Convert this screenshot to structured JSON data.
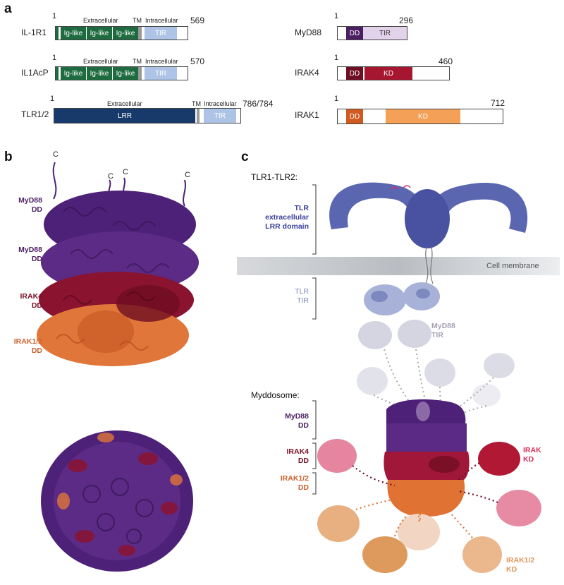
{
  "panels": {
    "a": "a",
    "b": "b",
    "c": "c"
  },
  "colors": {
    "ig_green": "#1d6b3e",
    "tm_gray": "#9a9a9a",
    "tir_blue": "#aec4e6",
    "lrr_navy": "#183a6b",
    "myd88_dd": "#4c1f63",
    "myd88_tir": "#e3d3ea",
    "irak4_dd": "#6e0e22",
    "irak4_kd": "#a6162f",
    "irak1_dd": "#d05a20",
    "irak1_kd": "#f4a057",
    "purple_protein": "#4e2178",
    "red_protein": "#8a1330",
    "orange_protein": "#e0763a",
    "blue_protein": "#5a67b0",
    "membrane": "#c8cbd0"
  },
  "panel_a": {
    "il1r1": {
      "name": "IL-1R1",
      "start": "1",
      "end": "569",
      "extracellular": "Extracellular",
      "tm": "TM",
      "intracellular": "Intracellular",
      "ig1": "Ig-like",
      "ig2": "Ig-like",
      "ig3": "Ig-like",
      "tir": "TIR"
    },
    "il1acp": {
      "name": "IL1AcP",
      "start": "1",
      "end": "570",
      "extracellular": "Extracellular",
      "tm": "TM",
      "intracellular": "Intracellular",
      "ig1": "Ig-like",
      "ig2": "Ig-like",
      "ig3": "Ig-like",
      "tir": "TIR"
    },
    "tlr12": {
      "name": "TLR1/2",
      "start": "1",
      "end": "786/784",
      "extracellular": "Extracellular",
      "tm": "TM",
      "intracellular": "Intracellular",
      "lrr": "LRR",
      "tir": "TIR"
    },
    "myd88": {
      "name": "MyD88",
      "start": "1",
      "end": "296",
      "dd": "DD",
      "tir": "TIR"
    },
    "irak4": {
      "name": "IRAK4",
      "start": "1",
      "end": "460",
      "dd": "DD",
      "kd": "KD"
    },
    "irak1": {
      "name": "IRAK1",
      "start": "1",
      "end": "712",
      "dd": "DD",
      "kd": "KD"
    }
  },
  "panel_b": {
    "c_terminus": "C",
    "myd88_dd_1": [
      "MyD88",
      "DD"
    ],
    "myd88_dd_2": [
      "MyD88",
      "DD"
    ],
    "irak4_dd": [
      "IRAK4",
      "DD"
    ],
    "irak12_dd": [
      "IRAK1/2",
      "DD"
    ]
  },
  "panel_c": {
    "tlr_title": "TLR1-TLR2:",
    "tlr_lrr": [
      "TLR",
      "extracellular",
      "LRR domain"
    ],
    "membrane": "Cell membrane",
    "tlr_tir": [
      "TLR",
      "TIR"
    ],
    "myd88_tir": [
      "MyD88",
      "TIR"
    ],
    "myddosome": "Myddosome:",
    "myd88_dd": [
      "MyD88",
      "DD"
    ],
    "irak4_dd": [
      "IRAK4",
      "DD"
    ],
    "irak12_dd": [
      "IRAK1/2",
      "DD"
    ],
    "irak_kd": [
      "IRAK",
      "KD"
    ],
    "irak12_kd": [
      "IRAK1/2",
      "KD"
    ]
  }
}
